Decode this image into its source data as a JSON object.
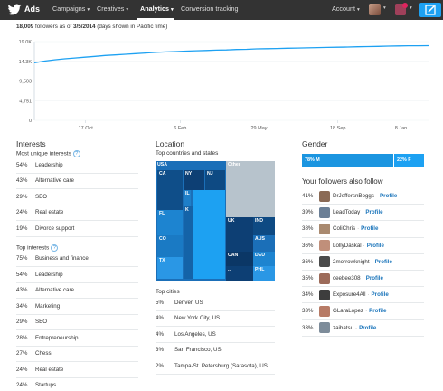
{
  "nav": {
    "brand": "Ads",
    "items": [
      {
        "label": "Campaigns",
        "caret": "▾"
      },
      {
        "label": "Creatives",
        "caret": "▾"
      },
      {
        "label": "Analytics",
        "caret": "▾"
      },
      {
        "label": "Conversion tracking",
        "caret": ""
      }
    ],
    "account": "Account",
    "account_caret": "▾"
  },
  "summary": {
    "count": "18,009",
    "text": " followers as of ",
    "date": "3/5/2014",
    "note": " (days shown in Pacific time)"
  },
  "chart_data": {
    "type": "line",
    "y_ticks": [
      "19.0K",
      "14.3K",
      "9,503",
      "4,751",
      "0"
    ],
    "x_ticks": [
      "17 Oct",
      "6 Feb",
      "29 May",
      "18 Sep",
      "8 Jan"
    ],
    "ylim": [
      0,
      19000
    ],
    "series": [
      {
        "values": [
          13900,
          14300,
          14600,
          14850,
          15050,
          15250,
          15450,
          15650,
          15800,
          15950,
          16100,
          16250,
          16400,
          16500,
          16600,
          16700,
          16800,
          16850,
          16950,
          17000,
          17100,
          17150,
          17250,
          17300,
          17350,
          17400,
          17450,
          17500,
          17550,
          17600,
          17650,
          17700,
          17750,
          17800,
          17850,
          17900,
          17950,
          18000,
          18000,
          18009
        ]
      }
    ],
    "color": "#1da1f2"
  },
  "interests": {
    "title": "Interests",
    "unique_title": "Most unique interests",
    "unique": [
      {
        "pct": "54%",
        "label": "Leadership"
      },
      {
        "pct": "43%",
        "label": "Alternative care"
      },
      {
        "pct": "29%",
        "label": "SEO"
      },
      {
        "pct": "24%",
        "label": "Real estate"
      },
      {
        "pct": "19%",
        "label": "Divorce support"
      }
    ],
    "top_title": "Top interests",
    "top": [
      {
        "pct": "75%",
        "label": "Business and finance"
      },
      {
        "pct": "54%",
        "label": "Leadership"
      },
      {
        "pct": "43%",
        "label": "Alternative care"
      },
      {
        "pct": "34%",
        "label": "Marketing"
      },
      {
        "pct": "29%",
        "label": "SEO"
      },
      {
        "pct": "28%",
        "label": "Entrepreneurship"
      },
      {
        "pct": "27%",
        "label": "Chess"
      },
      {
        "pct": "24%",
        "label": "Real estate"
      },
      {
        "pct": "24%",
        "label": "Startups"
      }
    ]
  },
  "location": {
    "title": "Location",
    "subtitle": "Top countries and states",
    "treemap_labels": [
      "USA",
      "Other",
      "CA",
      "NY",
      "NJ",
      "IL",
      "FL",
      "CO",
      "TX",
      "K",
      "UK",
      "IND",
      "AUS",
      "DEU",
      "CAN",
      "PHL",
      "..."
    ],
    "cities_title": "Top cities",
    "cities": [
      {
        "pct": "5%",
        "label": "Denver, US"
      },
      {
        "pct": "4%",
        "label": "New York City, US"
      },
      {
        "pct": "4%",
        "label": "Los Angeles, US"
      },
      {
        "pct": "3%",
        "label": "San Francisco, US"
      },
      {
        "pct": "2%",
        "label": "Tampa-St. Petersburg (Sarasota), US"
      }
    ]
  },
  "gender": {
    "title": "Gender",
    "male": "78% M",
    "female": "22% F",
    "male_share": 0.78
  },
  "follows": {
    "title": "Your followers also follow",
    "profile_label": "Profile",
    "separator": "·",
    "items": [
      {
        "pct": "41%",
        "handle": "DrJeffersnBoggs",
        "color": "#8a6a55"
      },
      {
        "pct": "39%",
        "handle": "LeadToday",
        "color": "#6b7f96"
      },
      {
        "pct": "38%",
        "handle": "ColiChris",
        "color": "#a98a70"
      },
      {
        "pct": "36%",
        "handle": "LollyDaskal",
        "color": "#c08f7a"
      },
      {
        "pct": "36%",
        "handle": "2morrowknight",
        "color": "#4a4a4a"
      },
      {
        "pct": "35%",
        "handle": "ceebee308",
        "color": "#9c6b5a"
      },
      {
        "pct": "34%",
        "handle": "Exposure4All",
        "color": "#3d3d3d"
      },
      {
        "pct": "33%",
        "handle": "GLaraLopez",
        "color": "#b77b66"
      },
      {
        "pct": "33%",
        "handle": "zaibatsu",
        "color": "#7d8c9a"
      }
    ]
  }
}
